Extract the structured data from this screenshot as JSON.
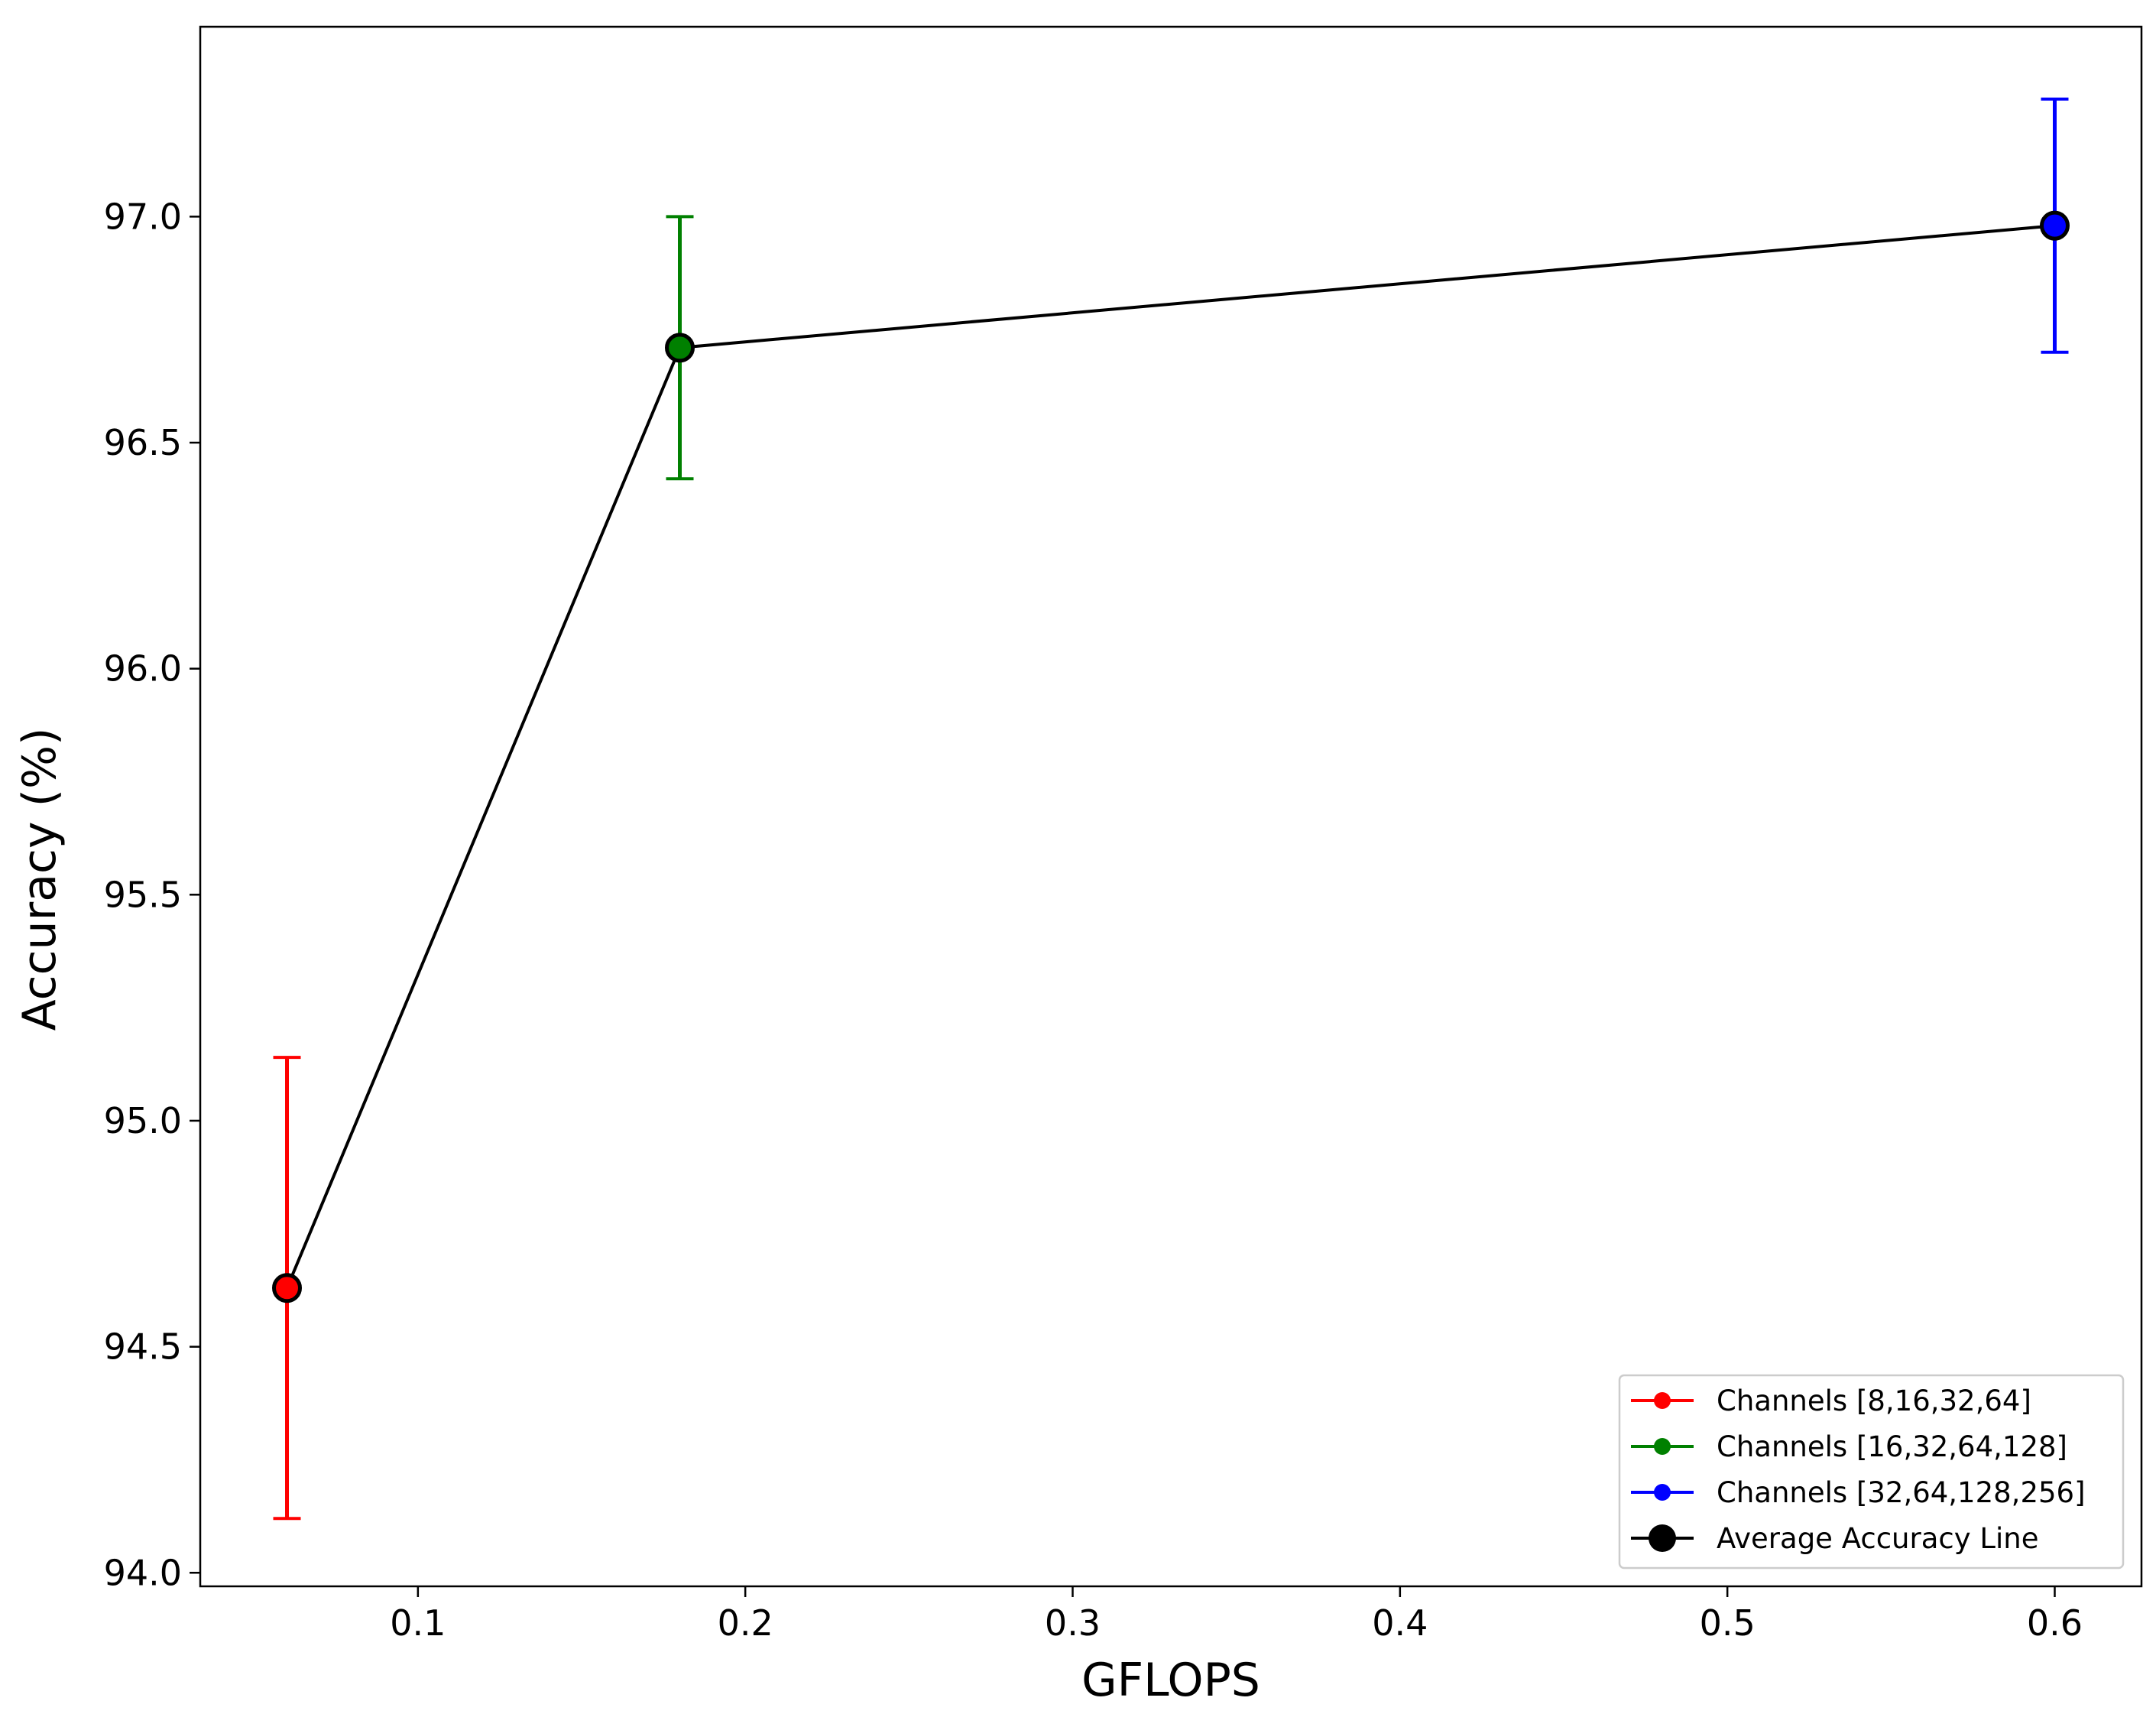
{
  "chart_data": {
    "type": "scatter",
    "title": "",
    "xlabel": "GFLOPS",
    "ylabel": "Accuracy (%)",
    "xlim": [
      0.0335,
      0.6265
    ],
    "ylim": [
      93.97,
      97.42
    ],
    "xticks": [
      0.1,
      0.2,
      0.3,
      0.4,
      0.5,
      0.6
    ],
    "xtick_labels": [
      "0.1",
      "0.2",
      "0.3",
      "0.4",
      "0.5",
      "0.6"
    ],
    "yticks": [
      94.0,
      94.5,
      95.0,
      95.5,
      96.0,
      96.5,
      97.0
    ],
    "ytick_labels": [
      "94.0",
      "94.5",
      "95.0",
      "95.5",
      "96.0",
      "96.5",
      "97.0"
    ],
    "grid": false,
    "legend_position": "bottom-right",
    "series": [
      {
        "name": "Channels [8,16,32,64]",
        "color": "#ff0000",
        "x": [
          0.06
        ],
        "y": [
          94.63
        ],
        "yerr": [
          0.51
        ]
      },
      {
        "name": "Channels [16,32,64,128]",
        "color": "#008000",
        "x": [
          0.18
        ],
        "y": [
          96.71
        ],
        "yerr": [
          0.29
        ]
      },
      {
        "name": "Channels [32,64,128,256]",
        "color": "#0000ff",
        "x": [
          0.6
        ],
        "y": [
          96.98
        ],
        "yerr": [
          0.28
        ]
      }
    ],
    "line": {
      "name": "Average Accuracy Line",
      "color": "#000000",
      "x": [
        0.06,
        0.18,
        0.6
      ],
      "y": [
        94.63,
        96.71,
        96.98
      ]
    }
  }
}
